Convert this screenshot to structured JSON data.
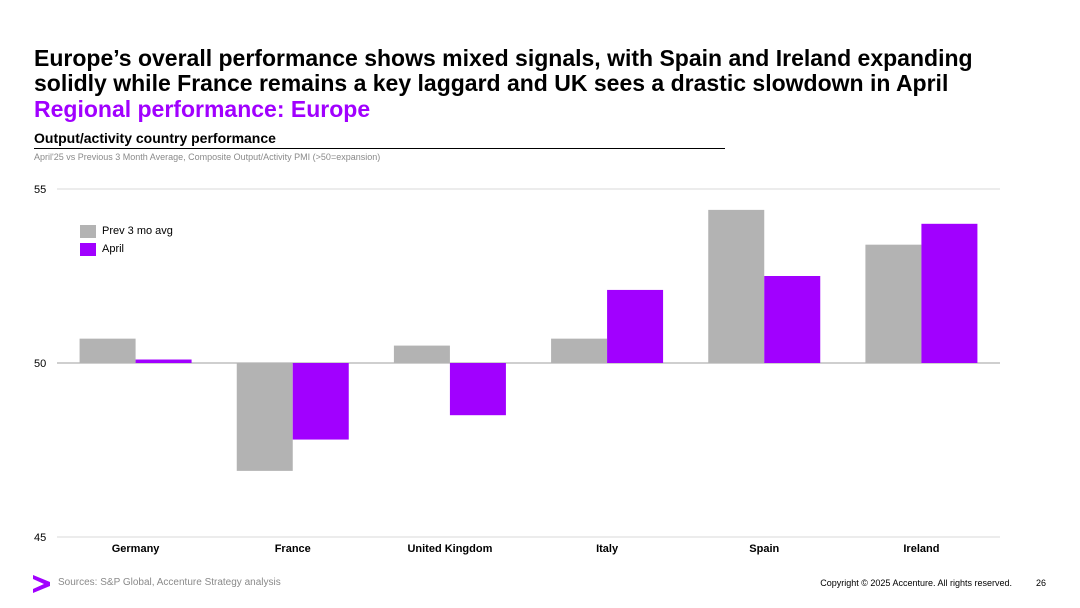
{
  "slide": {
    "headline": "Europe’s overall performance shows mixed signals, with Spain and Ireland expanding solidly while France remains a key laggard and UK sees a drastic slowdown in April",
    "subheadline": "Regional performance: Europe",
    "section_title": "Output/activity country performance",
    "chart_note": "April'25 vs Previous 3 Month Average, Composite Output/Activity PMI (>50=expansion)",
    "sources": "Sources: S&P Global, Accenture Strategy analysis",
    "copyright": "Copyright © 2025 Accenture. All rights reserved.",
    "page_number": "26"
  },
  "colors": {
    "accent": "#a100ff",
    "prev": "#b3b3b3",
    "april": "#a100ff",
    "grid": "#d9d9d9",
    "axis": "#bfbfbf"
  },
  "legend": {
    "items": [
      {
        "label": "Prev 3 mo avg",
        "color": "#b3b3b3"
      },
      {
        "label": "April",
        "color": "#a100ff"
      }
    ]
  },
  "chart_data": {
    "type": "bar",
    "title": "Output/activity country performance",
    "subtitle": "April'25 vs Previous 3 Month Average, Composite Output/Activity PMI (>50=expansion)",
    "categories": [
      "Germany",
      "France",
      "United Kingdom",
      "Italy",
      "Spain",
      "Ireland"
    ],
    "series": [
      {
        "name": "Prev 3 mo avg",
        "values": [
          50.7,
          46.9,
          50.5,
          50.7,
          54.4,
          53.4
        ]
      },
      {
        "name": "April",
        "values": [
          50.1,
          47.8,
          48.5,
          52.1,
          52.5,
          54.0
        ]
      }
    ],
    "baseline": 50,
    "ylim": [
      45,
      55
    ],
    "yticks": [
      45,
      50,
      55
    ],
    "xlabel": "",
    "ylabel": "",
    "legend_position": "top-left",
    "grid": true
  }
}
